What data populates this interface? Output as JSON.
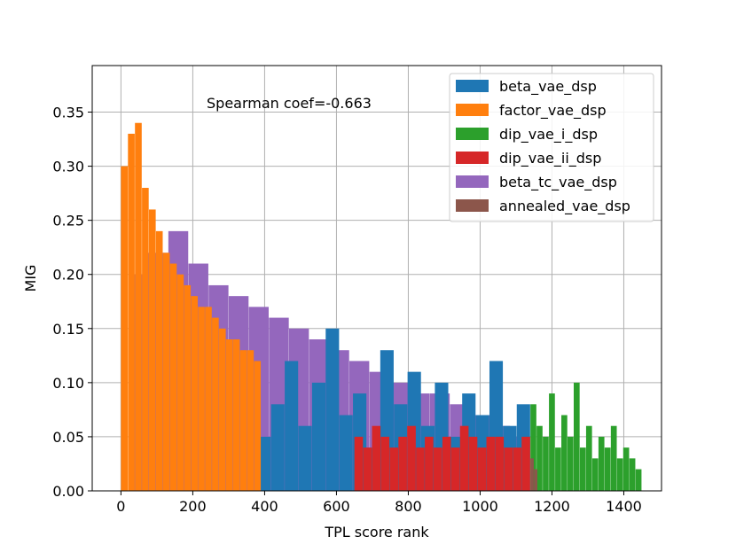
{
  "chart_data": {
    "type": "bar",
    "title": "",
    "xlabel": "TPL score rank",
    "ylabel": "MIG",
    "xlim": [
      -80,
      1505
    ],
    "ylim": [
      0,
      0.393
    ],
    "xticks": [
      0,
      200,
      400,
      600,
      800,
      1000,
      1200,
      1400
    ],
    "yticks": [
      0.0,
      0.05,
      0.1,
      0.15,
      0.2,
      0.25,
      0.3,
      0.35
    ],
    "xtick_labels": [
      "0",
      "200",
      "400",
      "600",
      "800",
      "1000",
      "1200",
      "1400"
    ],
    "ytick_labels": [
      "0.00",
      "0.05",
      "0.10",
      "0.15",
      "0.20",
      "0.25",
      "0.30",
      "0.35"
    ],
    "grid": true,
    "legend_position": "upper right",
    "annotation": "Spearman coef=-0.663",
    "series": [
      {
        "name": "beta_vae_dsp",
        "color": "#1f77b4",
        "rank_range": [
          380,
          1140
        ],
        "values": [
          0.05,
          0.08,
          0.12,
          0.06,
          0.1,
          0.15,
          0.07,
          0.09,
          0.04,
          0.13,
          0.08,
          0.11,
          0.06,
          0.1,
          0.05,
          0.09,
          0.07,
          0.12,
          0.06,
          0.08
        ]
      },
      {
        "name": "factor_vae_dsp",
        "color": "#ff7f0e",
        "rank_range": [
          0,
          390
        ],
        "values": [
          0.3,
          0.33,
          0.34,
          0.28,
          0.26,
          0.24,
          0.22,
          0.21,
          0.2,
          0.19,
          0.18,
          0.17,
          0.17,
          0.16,
          0.15,
          0.14,
          0.14,
          0.13,
          0.13,
          0.12
        ]
      },
      {
        "name": "dip_vae_i_dsp",
        "color": "#2ca02c",
        "rank_range": [
          1140,
          1450
        ],
        "values": [
          0.08,
          0.06,
          0.05,
          0.09,
          0.04,
          0.07,
          0.05,
          0.1,
          0.04,
          0.06,
          0.03,
          0.05,
          0.04,
          0.06,
          0.03,
          0.04,
          0.03,
          0.02
        ]
      },
      {
        "name": "dip_vae_ii_dsp",
        "color": "#d62728",
        "rank_range": [
          650,
          1140
        ],
        "values": [
          0.05,
          0.04,
          0.06,
          0.05,
          0.04,
          0.05,
          0.06,
          0.04,
          0.05,
          0.04,
          0.05,
          0.04,
          0.06,
          0.05,
          0.04,
          0.05,
          0.05,
          0.04,
          0.04,
          0.05
        ]
      },
      {
        "name": "beta_tc_vae_dsp",
        "color": "#9467bd",
        "rank_range": [
          20,
          1140
        ],
        "values": [
          0.2,
          0.22,
          0.24,
          0.21,
          0.19,
          0.18,
          0.17,
          0.16,
          0.15,
          0.14,
          0.13,
          0.12,
          0.11,
          0.1,
          0.09,
          0.09,
          0.08,
          0.07,
          0.06,
          0.05
        ]
      },
      {
        "name": "annealed_vae_dsp",
        "color": "#8c564b",
        "rank_range": [
          1140,
          1160
        ],
        "values": [
          0.03,
          0.02
        ]
      }
    ]
  }
}
